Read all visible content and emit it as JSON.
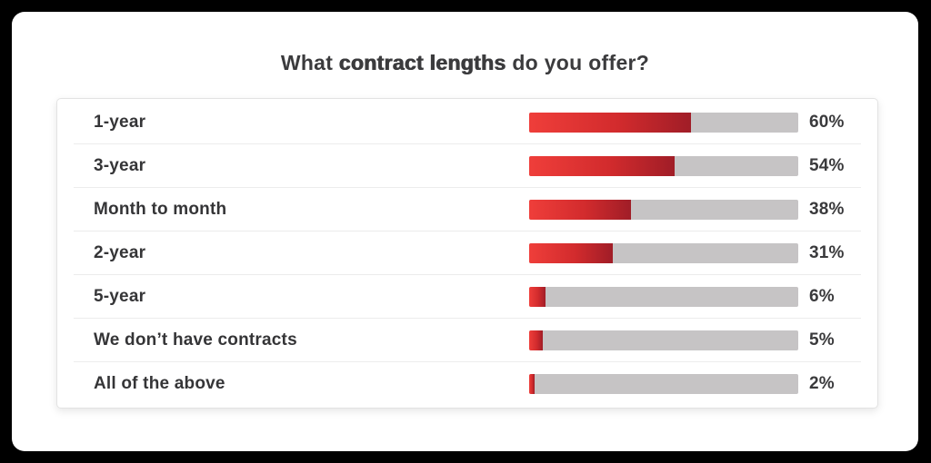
{
  "title": {
    "prefix": "What ",
    "emphasis": "contract lengths",
    "suffix": " do you offer?"
  },
  "chart_data": {
    "type": "bar",
    "orientation": "horizontal",
    "title": "What contract lengths do you offer?",
    "xlim": [
      0,
      100
    ],
    "grid": false,
    "legend": false,
    "categories": [
      "1-year",
      "3-year",
      "Month to month",
      "2-year",
      "5-year",
      "We don’t have contracts",
      "All of the above"
    ],
    "values": [
      60,
      54,
      38,
      31,
      6,
      5,
      2
    ],
    "value_labels": [
      "60%",
      "54%",
      "38%",
      "31%",
      "6%",
      "5%",
      "2%"
    ],
    "colors": {
      "bar_gradient_start": "#ef3e3a",
      "bar_gradient_end": "#a01d27",
      "track": "#c6c4c5",
      "text": "#3a3a3c",
      "frame_background": "#000000",
      "page_background": "#ffffff"
    }
  }
}
